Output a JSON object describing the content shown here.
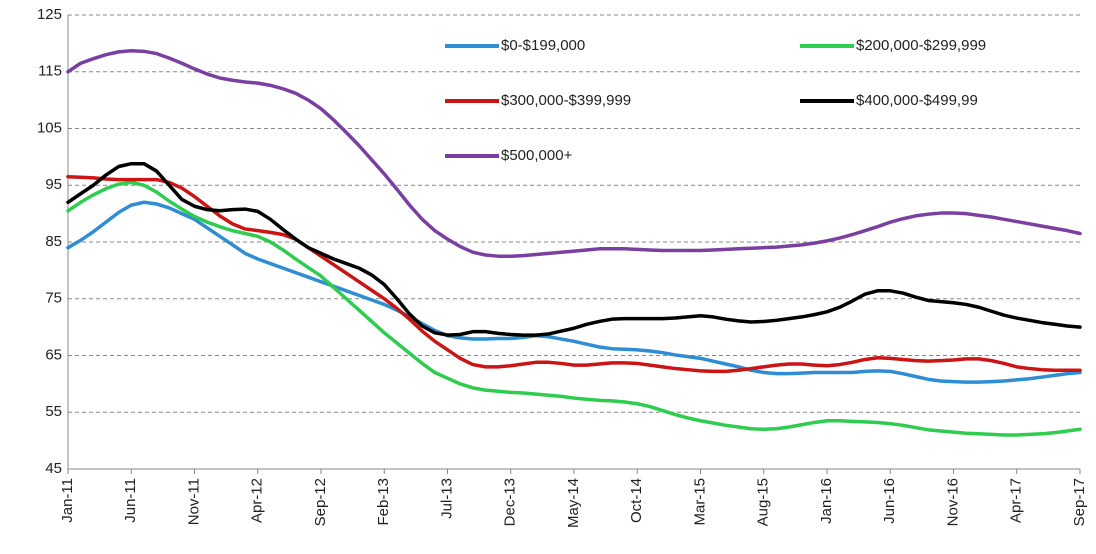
{
  "chart_data": {
    "type": "line",
    "categories": [
      "Jan-11",
      null,
      null,
      null,
      null,
      "Jun-11",
      null,
      null,
      null,
      null,
      "Nov-11",
      null,
      null,
      null,
      null,
      "Apr-12",
      null,
      null,
      null,
      null,
      "Sep-12",
      null,
      null,
      null,
      null,
      "Feb-13",
      null,
      null,
      null,
      null,
      "Jul-13",
      null,
      null,
      null,
      null,
      "Dec-13",
      null,
      null,
      null,
      null,
      "May-14",
      null,
      null,
      null,
      null,
      "Oct-14",
      null,
      null,
      null,
      null,
      "Mar-15",
      null,
      null,
      null,
      null,
      "Aug-15",
      null,
      null,
      null,
      null,
      "Jan-16",
      null,
      null,
      null,
      null,
      "Jun-16",
      null,
      null,
      null,
      null,
      "Nov-16",
      null,
      null,
      null,
      null,
      "Apr-17",
      null,
      null,
      null,
      null,
      "Sep-17"
    ],
    "series": [
      {
        "name": "$0-$199,000",
        "color": "#2f8dd3",
        "values": [
          84,
          85.3,
          86.8,
          88.5,
          90.2,
          91.5,
          92,
          91.7,
          91,
          90,
          89,
          87.5,
          86,
          84.5,
          83,
          82,
          81.2,
          80.4,
          79.6,
          78.8,
          78,
          77.2,
          76.4,
          75.6,
          74.8,
          74,
          73,
          71.8,
          70.6,
          69.4,
          68.5,
          68.1,
          67.9,
          67.9,
          68,
          68,
          68.2,
          68.5,
          68.3,
          67.9,
          67.5,
          67,
          66.5,
          66.2,
          66.1,
          66,
          65.8,
          65.5,
          65.1,
          64.8,
          64.5,
          64,
          63.5,
          63,
          62.4,
          62,
          61.8,
          61.8,
          61.9,
          62,
          62,
          62,
          62,
          62.2,
          62.3,
          62.2,
          61.8,
          61.3,
          60.8,
          60.5,
          60.4,
          60.3,
          60.3,
          60.4,
          60.5,
          60.7,
          60.9,
          61.2,
          61.5,
          61.8,
          62
        ]
      },
      {
        "name": "$200,000-$299,999",
        "color": "#2ecc4f",
        "values": [
          90.5,
          92,
          93.3,
          94.4,
          95.2,
          95.5,
          95,
          93.8,
          92.2,
          90.8,
          89.5,
          88.5,
          87.7,
          87,
          86.5,
          86,
          85,
          83.6,
          82,
          80.5,
          79,
          77,
          75,
          73,
          71,
          69,
          67.2,
          65.4,
          63.6,
          62,
          61,
          60,
          59.3,
          58.9,
          58.7,
          58.5,
          58.4,
          58.2,
          58,
          57.8,
          57.5,
          57.3,
          57.1,
          57,
          56.8,
          56.5,
          56,
          55.3,
          54.6,
          54,
          53.5,
          53.1,
          52.7,
          52.4,
          52.1,
          52,
          52.1,
          52.4,
          52.8,
          53.2,
          53.5,
          53.5,
          53.4,
          53.3,
          53.2,
          53,
          52.7,
          52.3,
          51.9,
          51.7,
          51.5,
          51.3,
          51.2,
          51.1,
          51,
          51,
          51.1,
          51.2,
          51.4,
          51.7,
          52
        ]
      },
      {
        "name": "$300,000-$399,999",
        "color": "#cc1414",
        "values": [
          96.5,
          96.4,
          96.3,
          96.1,
          96,
          96,
          96,
          96,
          95.5,
          94.5,
          93,
          91.3,
          89.6,
          88.2,
          87.3,
          87,
          86.7,
          86.3,
          85.5,
          84,
          82.5,
          81,
          79.5,
          78,
          76.5,
          75,
          73.3,
          71.4,
          69.3,
          67.5,
          66,
          64.5,
          63.4,
          63,
          63,
          63.2,
          63.5,
          63.8,
          63.8,
          63.6,
          63.3,
          63.3,
          63.5,
          63.7,
          63.7,
          63.6,
          63.3,
          63,
          62.7,
          62.5,
          62.3,
          62.2,
          62.2,
          62.4,
          62.7,
          63,
          63.3,
          63.5,
          63.5,
          63.3,
          63.2,
          63.4,
          63.8,
          64.3,
          64.6,
          64.5,
          64.3,
          64.1,
          64,
          64.1,
          64.2,
          64.4,
          64.4,
          64.1,
          63.6,
          63,
          62.7,
          62.5,
          62.4,
          62.4,
          62.4
        ]
      },
      {
        "name": "$400,000-$499,99",
        "color": "#000000",
        "values": [
          92,
          93.5,
          95,
          96.8,
          98.3,
          98.8,
          98.8,
          97.5,
          95,
          92.5,
          91.3,
          90.7,
          90.5,
          90.7,
          90.8,
          90.4,
          89,
          87.2,
          85.5,
          84,
          83,
          82,
          81.2,
          80.4,
          79.2,
          77.5,
          75,
          72.3,
          70.2,
          69,
          68.6,
          68.7,
          69.2,
          69.2,
          68.9,
          68.7,
          68.6,
          68.6,
          68.8,
          69.3,
          69.8,
          70.5,
          71,
          71.4,
          71.5,
          71.5,
          71.5,
          71.5,
          71.6,
          71.8,
          72,
          71.8,
          71.4,
          71.1,
          70.9,
          71,
          71.2,
          71.5,
          71.8,
          72.2,
          72.7,
          73.5,
          74.6,
          75.8,
          76.4,
          76.4,
          76,
          75.3,
          74.7,
          74.5,
          74.3,
          74,
          73.5,
          72.8,
          72.1,
          71.6,
          71.2,
          70.8,
          70.5,
          70.2,
          70
        ]
      },
      {
        "name": "$500,000+",
        "color": "#7b3fa1",
        "values": [
          115,
          116.5,
          117.3,
          118,
          118.5,
          118.7,
          118.6,
          118.2,
          117.4,
          116.5,
          115.5,
          114.6,
          113.9,
          113.5,
          113.2,
          113,
          112.6,
          112,
          111.2,
          110,
          108.5,
          106.5,
          104.3,
          102,
          99.5,
          97,
          94.3,
          91.5,
          89,
          87,
          85.5,
          84.2,
          83.2,
          82.7,
          82.5,
          82.5,
          82.6,
          82.8,
          83,
          83.2,
          83.4,
          83.6,
          83.8,
          83.8,
          83.8,
          83.7,
          83.6,
          83.5,
          83.5,
          83.5,
          83.5,
          83.6,
          83.7,
          83.8,
          83.9,
          84,
          84.1,
          84.3,
          84.5,
          84.8,
          85.2,
          85.7,
          86.3,
          87,
          87.7,
          88.5,
          89.1,
          89.6,
          89.9,
          90.1,
          90.1,
          90,
          89.7,
          89.4,
          89,
          88.6,
          88.2,
          87.8,
          87.4,
          87,
          86.5
        ]
      }
    ],
    "ylim": [
      45,
      125
    ],
    "yticks": [
      45,
      55,
      65,
      75,
      85,
      95,
      105,
      115,
      125
    ],
    "grid": true,
    "legend": "upper right"
  }
}
